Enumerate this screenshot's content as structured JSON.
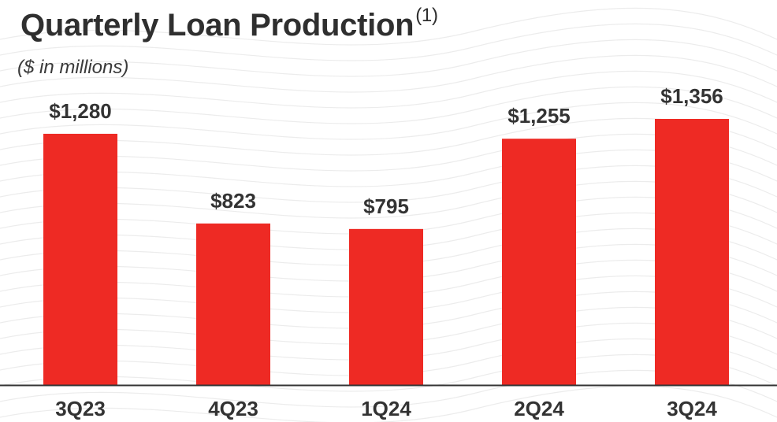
{
  "title": "Quarterly Loan Production",
  "title_footnote": "(1)",
  "subtitle": "($ in millions)",
  "colors": {
    "bar": "#ee2a24",
    "axis": "#333333",
    "text": "#333333"
  },
  "chart_data": {
    "type": "bar",
    "title": "Quarterly Loan Production",
    "subtitle": "($ in millions)",
    "categories": [
      "3Q23",
      "4Q23",
      "1Q24",
      "2Q24",
      "3Q24"
    ],
    "values": [
      1280,
      823,
      795,
      1255,
      1356
    ],
    "data_labels": [
      "$1,280",
      "$823",
      "$795",
      "$1,255",
      "$1,356"
    ],
    "xlabel": "",
    "ylabel": "",
    "ylim": [
      0,
      1356
    ],
    "grid": false,
    "legend": "none"
  }
}
